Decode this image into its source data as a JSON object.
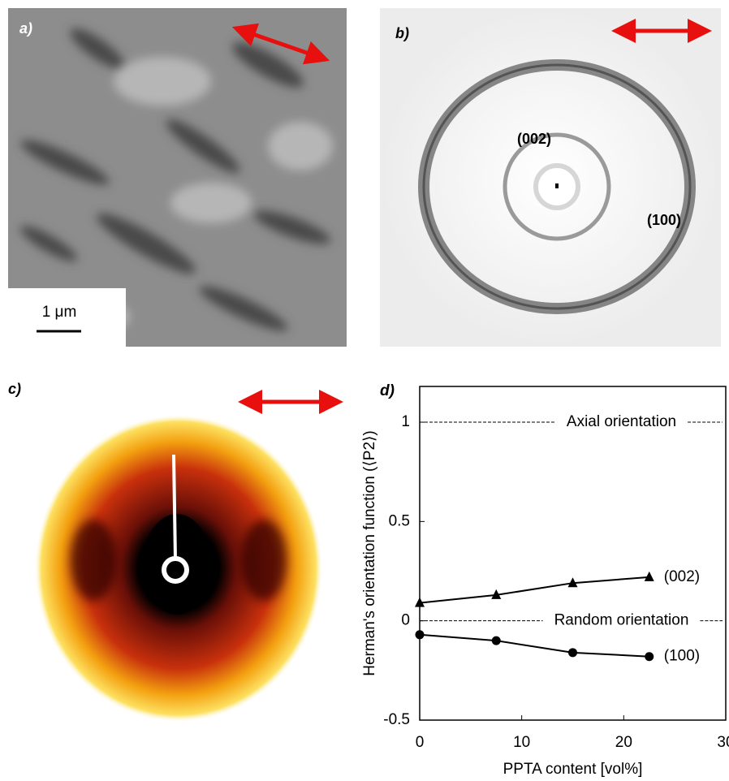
{
  "panels": [
    {
      "label": "a)",
      "scale_bar": "1 μm"
    },
    {
      "label": "b)",
      "annotations": [
        "(002)",
        "(100)"
      ]
    },
    {
      "label": "c)"
    },
    {
      "label": "d)"
    }
  ],
  "chart_data": {
    "type": "line",
    "x": [
      0,
      7.5,
      15,
      22.5
    ],
    "series": [
      {
        "name": "(002)",
        "color": "#000000",
        "marker": "triangle",
        "values": [
          0.09,
          0.13,
          0.19,
          0.22
        ]
      },
      {
        "name": "(100)",
        "color": "#000000",
        "marker": "circle",
        "values": [
          -0.07,
          -0.1,
          -0.16,
          -0.18
        ]
      }
    ],
    "reference_lines": [
      {
        "value": 1,
        "label": "Axial orientation"
      },
      {
        "value": 0,
        "label": "Random orientation"
      }
    ],
    "xlim": [
      0,
      30
    ],
    "xticks": [
      0,
      10,
      20,
      30
    ],
    "ylim": [
      -0.5,
      1.18
    ],
    "yticks": [
      -0.5,
      0,
      0.5,
      1
    ],
    "xlabel": "PPTA content [vol%]",
    "ylabel": "Herman's orientation function (⟨P2⟩)"
  }
}
